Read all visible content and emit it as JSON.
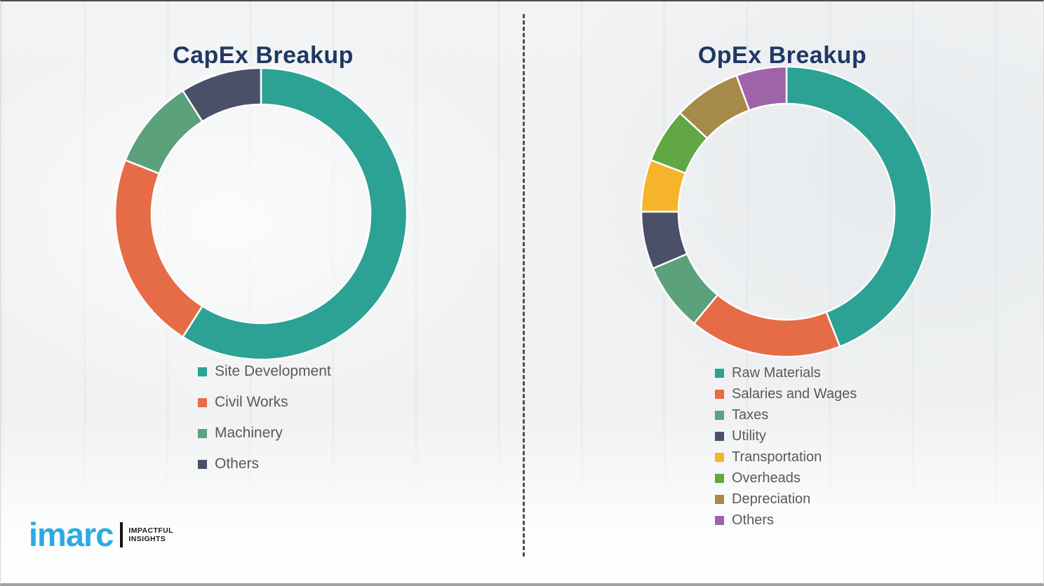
{
  "page": {
    "background_color": "#eff0f1",
    "title_color": "#1f3864",
    "legend_text_color": "#595959",
    "divider_style": "vertical-dashed"
  },
  "chart_data": [
    {
      "type": "pie",
      "subtype": "donut",
      "title": "CapEx Breakup",
      "legend_position": "below-left",
      "start_angle_deg": 0,
      "direction": "clockwise",
      "segments": [
        {
          "label": "Site Development",
          "value_pct": 59,
          "color": "#2ba294"
        },
        {
          "label": "Civil Works",
          "value_pct": 22,
          "color": "#e66c47"
        },
        {
          "label": "Machinery",
          "value_pct": 10,
          "color": "#5ba17c"
        },
        {
          "label": "Others",
          "value_pct": 9,
          "color": "#4a5068"
        }
      ]
    },
    {
      "type": "pie",
      "subtype": "donut",
      "title": "OpEx Breakup",
      "legend_position": "below-left",
      "start_angle_deg": 0,
      "direction": "clockwise",
      "segments": [
        {
          "label": "Raw Materials",
          "value_pct": 44,
          "color": "#2ba294"
        },
        {
          "label": "Salaries and Wages",
          "value_pct": 17,
          "color": "#e66c47"
        },
        {
          "label": "Taxes",
          "value_pct": 7.6,
          "color": "#5ba17c"
        },
        {
          "label": "Utility",
          "value_pct": 6.4,
          "color": "#4a5068"
        },
        {
          "label": "Transportation",
          "value_pct": 5.8,
          "color": "#f6b42a"
        },
        {
          "label": "Overheads",
          "value_pct": 6.1,
          "color": "#61a744"
        },
        {
          "label": "Depreciation",
          "value_pct": 7.5,
          "color": "#a68a49"
        },
        {
          "label": "Others",
          "value_pct": 5.6,
          "color": "#9f63a8"
        }
      ]
    }
  ],
  "logo": {
    "brand": "imarc",
    "brand_color": "#29abe3",
    "tagline_line1": "IMPACTFUL",
    "tagline_line2": "INSIGHTS"
  }
}
